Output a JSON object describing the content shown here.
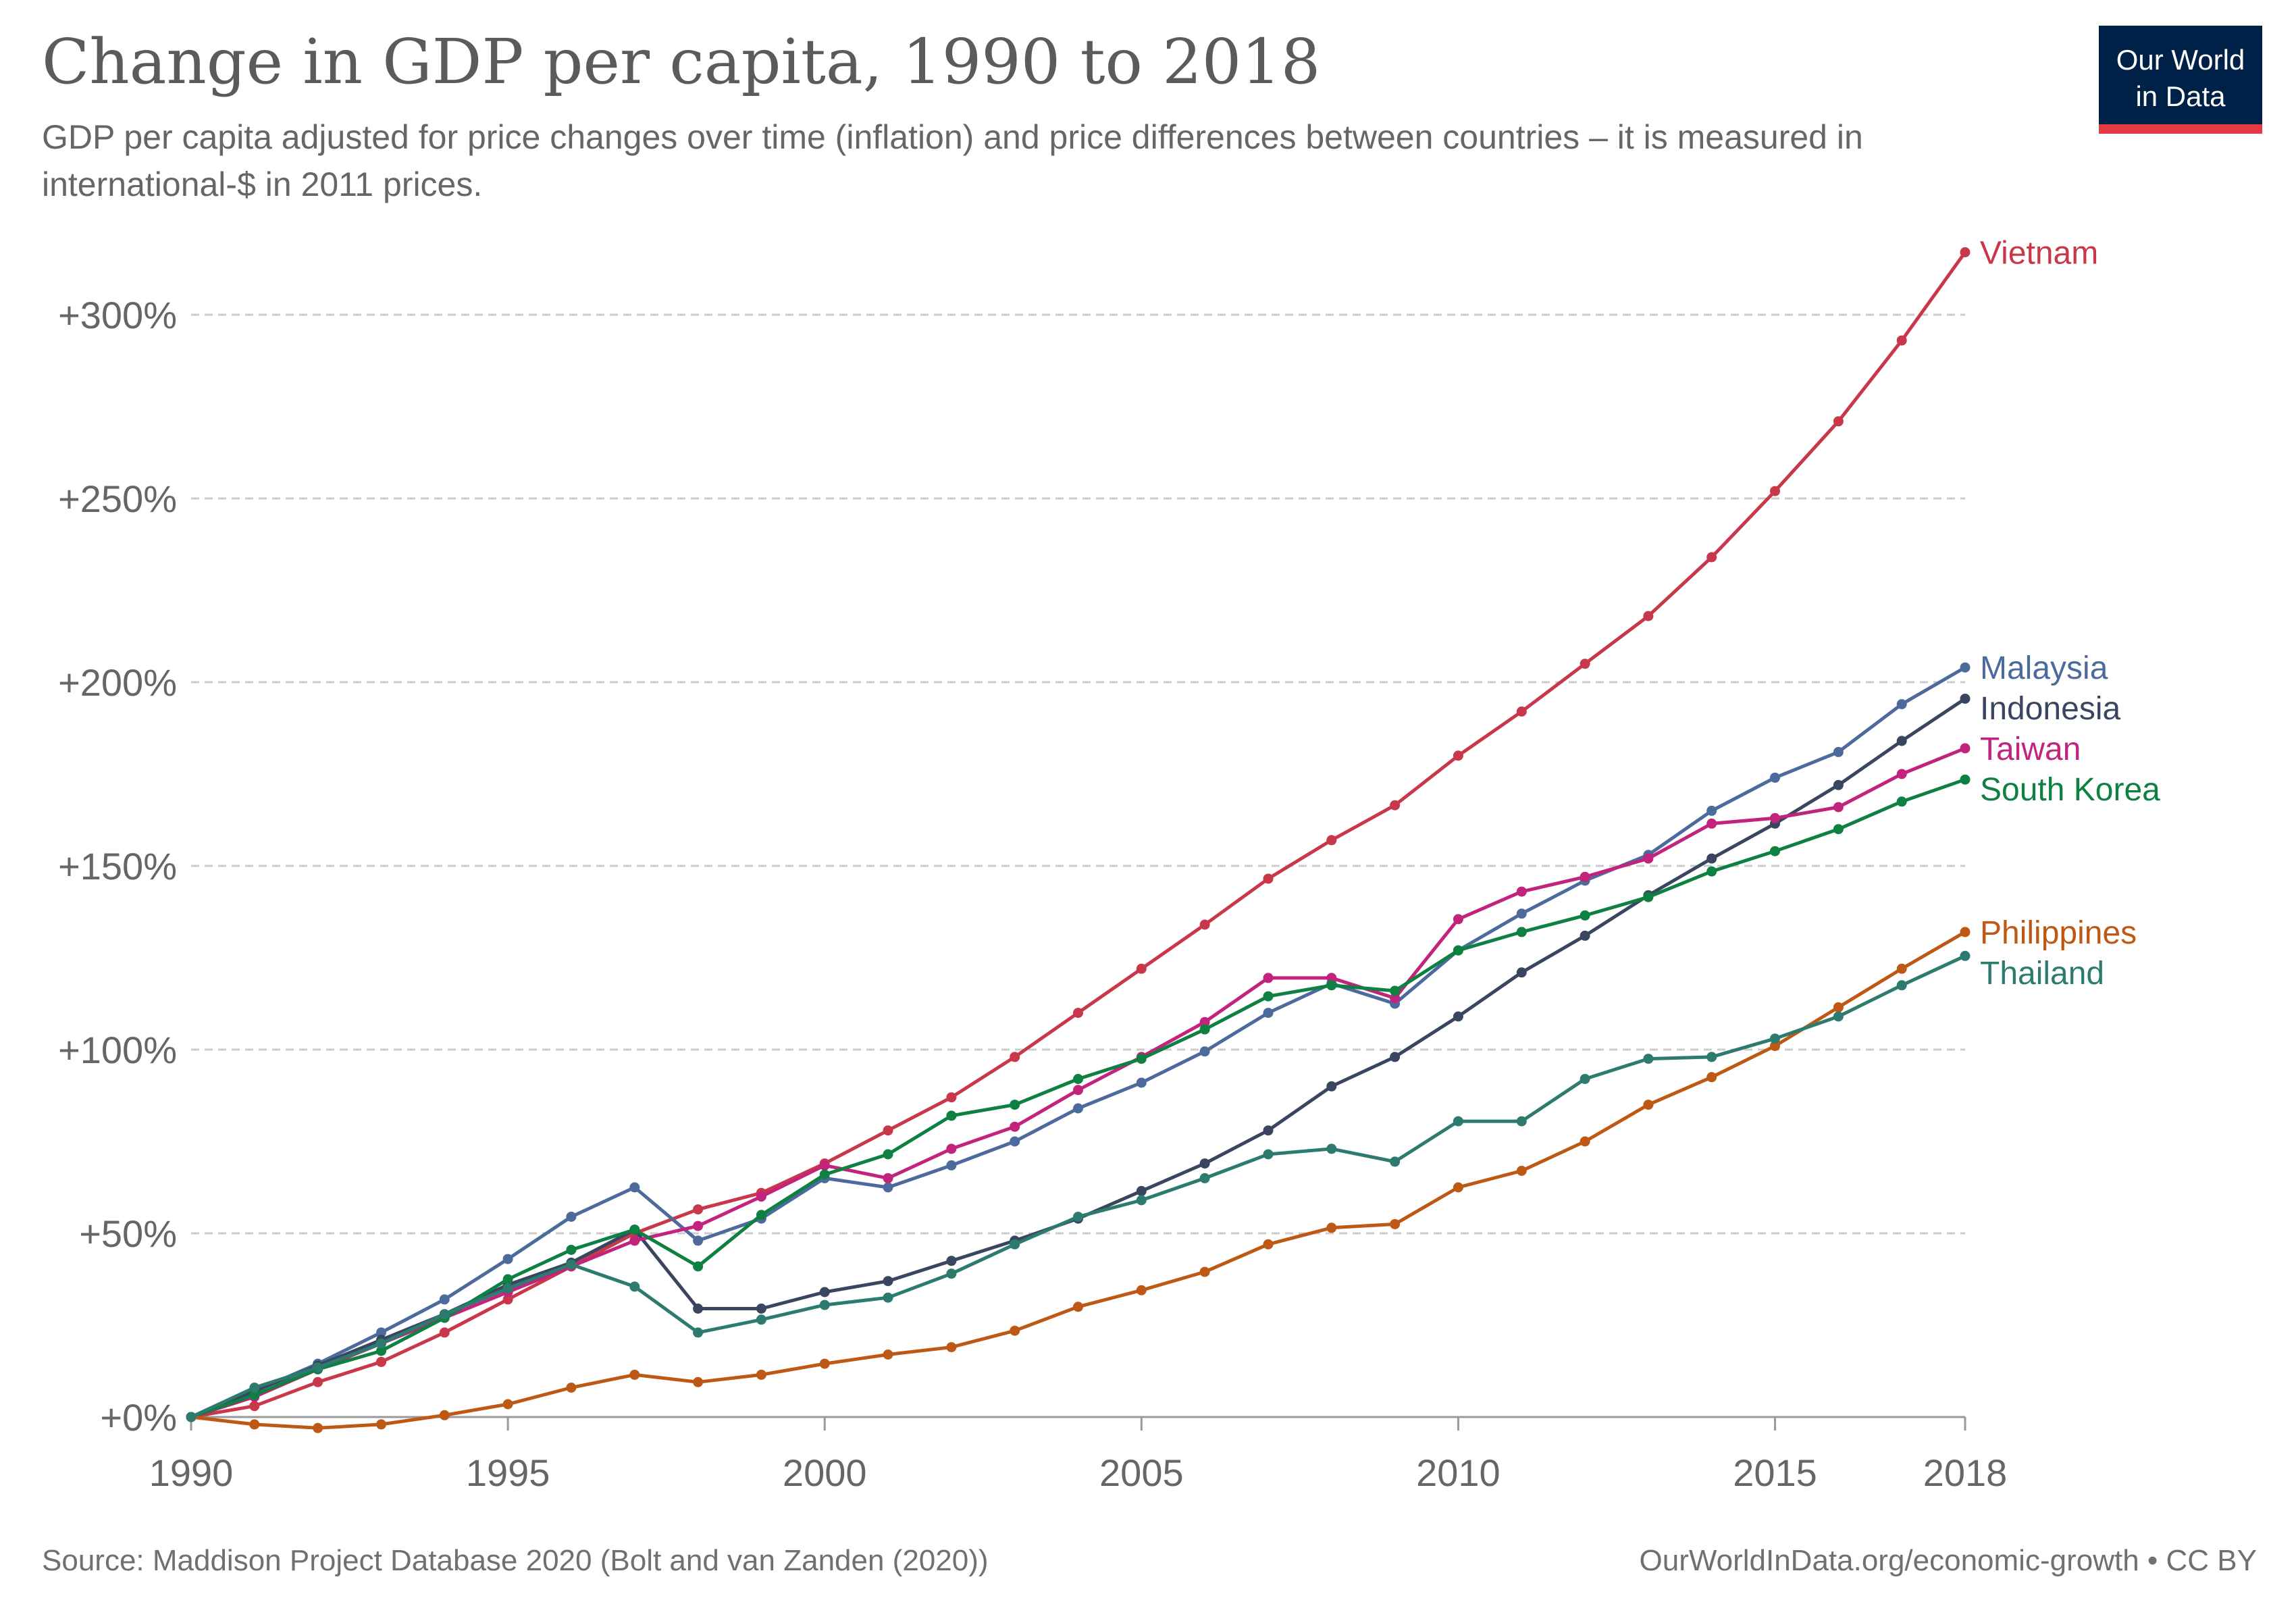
{
  "header": {
    "title": "Change in GDP per capita, 1990 to 2018",
    "subtitle": "GDP per capita adjusted for price changes over time (inflation) and price differences between countries – it is measured in international-$ in 2011 prices."
  },
  "logo": {
    "line1": "Our World",
    "line2": "in Data",
    "bg_color": "#002147",
    "accent_color": "#e63946"
  },
  "footer": {
    "source": "Source: Maddison Project Database 2020 (Bolt and van Zanden (2020))",
    "url": "OurWorldInData.org/economic-growth • CC BY"
  },
  "chart_data": {
    "type": "line",
    "title": "Change in GDP per capita, 1990 to 2018",
    "xlabel": "",
    "ylabel": "",
    "xlim": [
      1990,
      2018
    ],
    "ylim": [
      0,
      320
    ],
    "x_ticks": [
      1990,
      1995,
      2000,
      2005,
      2010,
      2015,
      2018
    ],
    "y_ticks": [
      0,
      50,
      100,
      150,
      200,
      250,
      300
    ],
    "y_tick_labels": [
      "+0%",
      "+50%",
      "+100%",
      "+150%",
      "+200%",
      "+250%",
      "+300%"
    ],
    "grid": "horizontal-dashed",
    "legend": "end-of-line labels",
    "x": [
      1990,
      1991,
      1992,
      1993,
      1994,
      1995,
      1996,
      1997,
      1998,
      1999,
      2000,
      2001,
      2002,
      2003,
      2004,
      2005,
      2006,
      2007,
      2008,
      2009,
      2010,
      2011,
      2012,
      2013,
      2014,
      2015,
      2016,
      2017,
      2018
    ],
    "series": [
      {
        "name": "Vietnam",
        "color": "#c8374a",
        "values": [
          0,
          3,
          9.5,
          15,
          23,
          32,
          41,
          50,
          56.5,
          61,
          69,
          78,
          87,
          98,
          110,
          122,
          134,
          146.5,
          157,
          166.5,
          180,
          192,
          205,
          218,
          234,
          252,
          271,
          293,
          317
        ]
      },
      {
        "name": "Malaysia",
        "color": "#4c6a9c",
        "values": [
          0,
          7,
          14.5,
          23,
          32,
          43,
          54.5,
          62.5,
          48,
          54,
          65,
          62.5,
          68.5,
          75,
          84,
          91,
          99.5,
          110,
          118,
          112.5,
          127,
          137,
          146,
          153,
          165,
          174,
          181,
          194,
          204
        ]
      },
      {
        "name": "Indonesia",
        "color": "#3a4660",
        "values": [
          0,
          7,
          14,
          21,
          28,
          36,
          42,
          51,
          29.5,
          29.5,
          34,
          37,
          42.5,
          48,
          54,
          61.5,
          69,
          78,
          90,
          98,
          109,
          121,
          131,
          142,
          152,
          161.5,
          172,
          184,
          195.5
        ]
      },
      {
        "name": "Taiwan",
        "color": "#c2237c",
        "values": [
          0,
          5.5,
          13,
          20,
          27,
          34,
          41,
          48,
          52,
          60,
          68.5,
          65,
          73,
          79,
          89,
          98,
          107.5,
          119.5,
          119.5,
          114,
          135.5,
          143,
          147,
          152,
          161.5,
          163,
          166,
          175,
          182
        ]
      },
      {
        "name": "South Korea",
        "color": "#0d8042",
        "values": [
          0,
          6,
          13,
          18,
          27,
          37.5,
          45.5,
          51,
          41,
          55,
          66,
          71.5,
          82,
          85,
          92,
          97.5,
          105.5,
          114.5,
          117.5,
          116,
          127,
          132,
          136.5,
          141.5,
          148.5,
          154,
          160,
          167.5,
          173.5
        ]
      },
      {
        "name": "Philippines",
        "color": "#be5915",
        "values": [
          0,
          -2,
          -3,
          -2,
          0.5,
          3.5,
          8,
          11.5,
          9.5,
          11.5,
          14.5,
          17,
          19,
          23.5,
          30,
          34.5,
          39.5,
          47,
          51.5,
          52.5,
          62.5,
          67,
          75,
          85,
          92.5,
          101,
          111.5,
          122,
          132
        ]
      },
      {
        "name": "Thailand",
        "color": "#2c7b6e",
        "values": [
          0,
          8,
          13.5,
          20,
          28,
          35,
          41.5,
          35.5,
          23,
          26.5,
          30.5,
          32.5,
          39,
          47,
          54.5,
          59,
          65,
          71.5,
          73,
          69.5,
          80.5,
          80.5,
          92,
          97.5,
          98,
          103,
          109,
          117.5,
          125.5
        ]
      }
    ]
  }
}
